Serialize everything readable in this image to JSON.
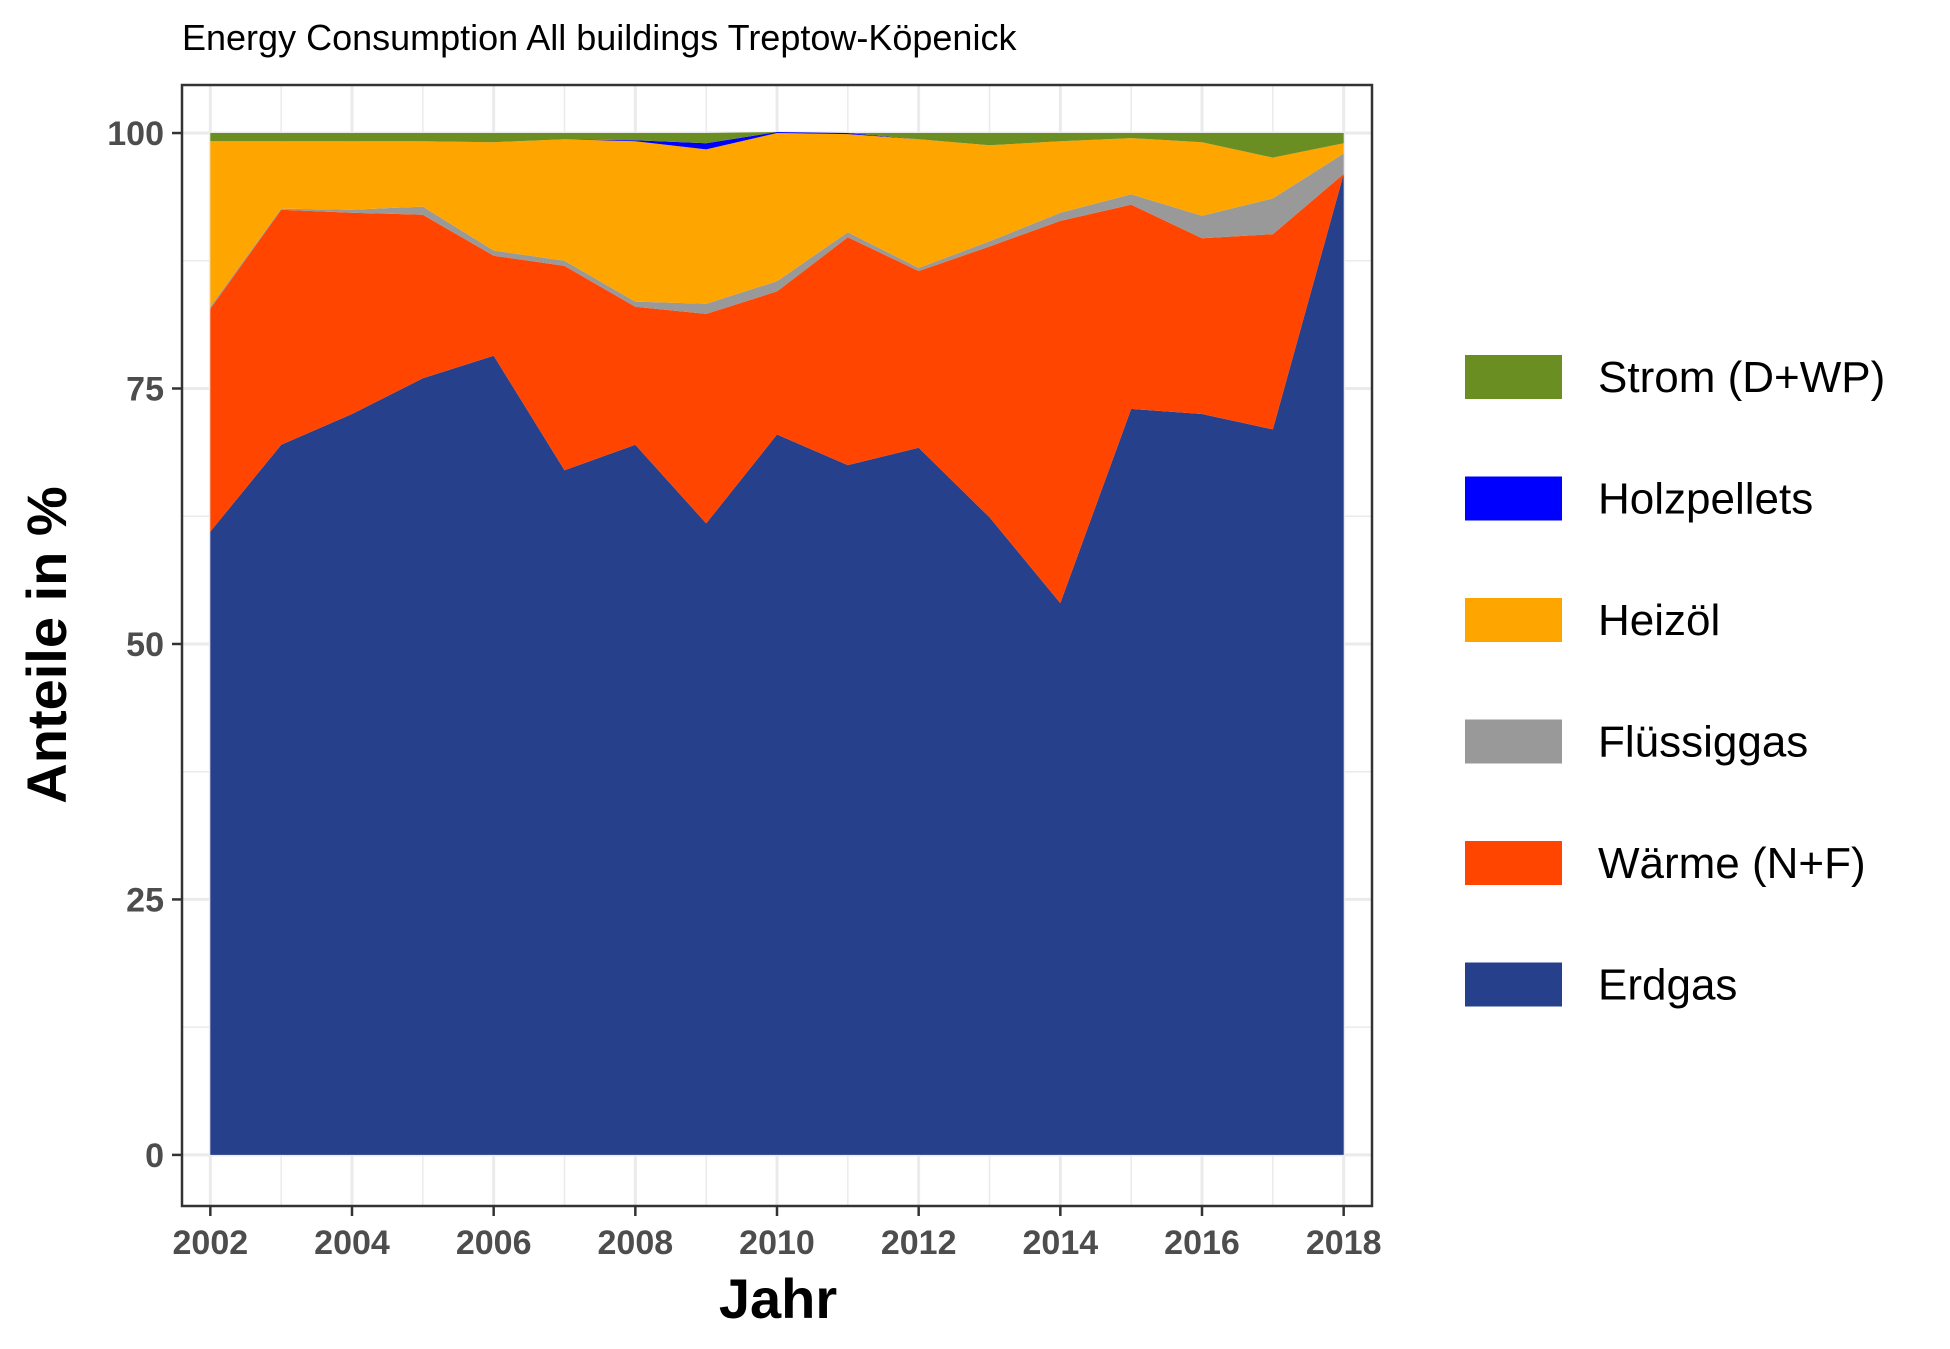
{
  "chart_data": {
    "type": "area",
    "stacked": true,
    "title": "Energy Consumption All buildings Treptow-Köpenick",
    "xlabel": "Jahr",
    "ylabel": "Anteile in %",
    "x": [
      2002,
      2003,
      2004,
      2005,
      2006,
      2007,
      2008,
      2009,
      2010,
      2011,
      2012,
      2013,
      2014,
      2015,
      2016,
      2017,
      2018
    ],
    "xlim": [
      2001.6,
      2018.4
    ],
    "ylim": [
      -5,
      104.7
    ],
    "x_ticks": [
      2002,
      2004,
      2006,
      2008,
      2010,
      2012,
      2014,
      2016,
      2018
    ],
    "y_ticks": [
      0,
      25,
      50,
      75,
      100
    ],
    "x_tick_labels": [
      "2002",
      "2004",
      "2006",
      "2008",
      "2010",
      "2012",
      "2014",
      "2016",
      "2018"
    ],
    "y_tick_labels": [
      "0",
      "25",
      "50",
      "75",
      "100"
    ],
    "grid": true,
    "legend_position": "right",
    "series": [
      {
        "name": "Erdgas",
        "color": "#27408B",
        "values": [
          61,
          69.5,
          72.5,
          76,
          78.2,
          67,
          69.5,
          61.8,
          70.5,
          67.5,
          69.2,
          62.4,
          54,
          73,
          72.5,
          71,
          96
        ]
      },
      {
        "name": "Wärme (N+F)",
        "color": "#FF4500",
        "values": [
          21.8,
          23,
          19.7,
          16,
          9.8,
          20,
          13.5,
          20.5,
          14,
          22.3,
          17.3,
          26.5,
          37.4,
          20,
          17.2,
          19.1,
          0
        ]
      },
      {
        "name": "Flüssiggas",
        "color": "#999999",
        "values": [
          0.2,
          0.1,
          0.3,
          0.8,
          0.5,
          0.5,
          0.5,
          1,
          1,
          0.5,
          0.3,
          0.5,
          0.8,
          1,
          2.2,
          3.5,
          2
        ]
      },
      {
        "name": "Heizöl",
        "color": "#FFA500",
        "values": [
          16.2,
          6.6,
          6.7,
          6.4,
          10.6,
          11.9,
          15.7,
          15.1,
          14.5,
          9.6,
          12.6,
          9.4,
          7,
          5.5,
          7.2,
          4,
          1
        ]
      },
      {
        "name": "Holzpellets",
        "color": "#0000FF",
        "values": [
          0,
          0,
          0,
          0,
          0,
          0,
          0.1,
          0.6,
          0.1,
          0.1,
          0,
          0,
          0,
          0,
          0,
          0,
          0
        ]
      },
      {
        "name": "Strom (D+WP)",
        "color": "#6B8E23",
        "values": [
          0.8,
          0.8,
          0.8,
          0.8,
          0.9,
          0.6,
          0.7,
          1,
          0,
          0,
          0.6,
          1.2,
          0.8,
          0.5,
          0.9,
          2.4,
          1
        ]
      }
    ],
    "legend_order": [
      "Strom (D+WP)",
      "Holzpellets",
      "Heizöl",
      "Flüssiggas",
      "Wärme (N+F)",
      "Erdgas"
    ]
  }
}
